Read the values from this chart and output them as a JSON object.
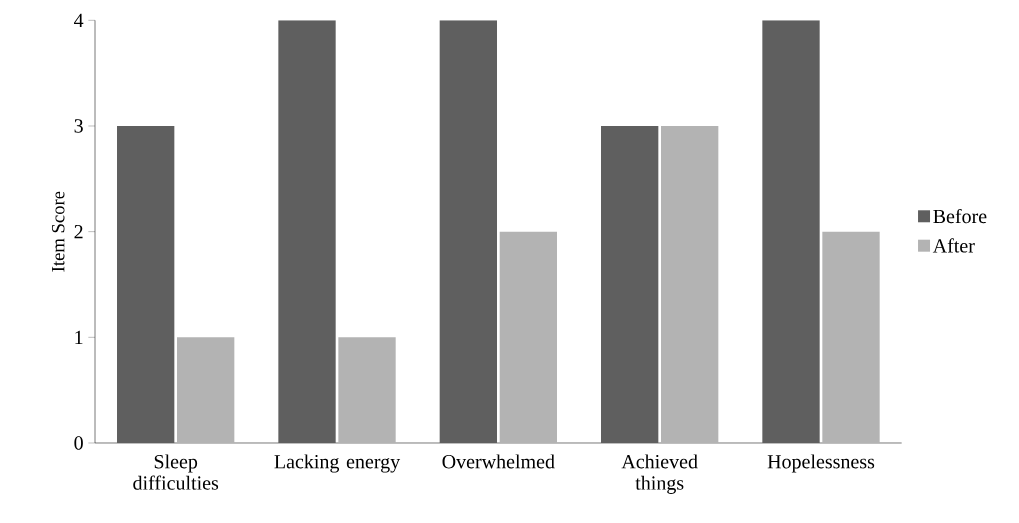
{
  "chart_data": {
    "type": "bar",
    "ylabel": "Item Score",
    "categories": [
      "Sleep difficulties",
      "Lacking energy",
      "Overwhelmed",
      "Achieved things",
      "Hopelessness"
    ],
    "series": [
      {
        "name": "Before",
        "color": "#5f5f5f",
        "values": [
          3,
          4,
          4,
          3,
          4
        ]
      },
      {
        "name": "After",
        "color": "#b3b3b3",
        "values": [
          1,
          1,
          2,
          3,
          2
        ]
      }
    ],
    "ylim": [
      0,
      4
    ],
    "yticks": [
      0,
      1,
      2,
      3,
      4
    ],
    "grid": false,
    "legend": "right"
  }
}
